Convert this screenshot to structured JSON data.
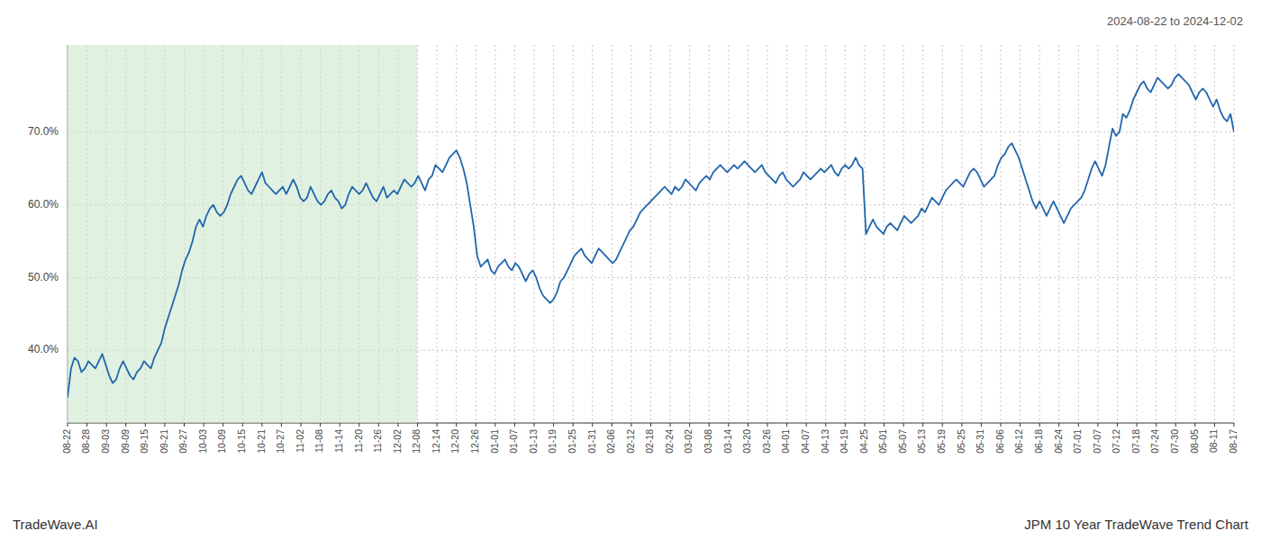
{
  "chart_data": {
    "type": "line",
    "title": "JPM 10 Year TradeWave Trend Chart",
    "subtitle": "2024-08-22 to 2024-12-02",
    "annotations": [
      "TradeWave.AI"
    ],
    "color": "#2166ac",
    "grid": true,
    "xlim": [
      0,
      60
    ],
    "xticks": [
      {
        "value": 0,
        "label": "08-22"
      },
      {
        "value": 1,
        "label": "08-28"
      },
      {
        "value": 2,
        "label": "09-03"
      },
      {
        "value": 3,
        "label": "09-09"
      },
      {
        "value": 4,
        "label": "09-15"
      },
      {
        "value": 5,
        "label": "09-21"
      },
      {
        "value": 6,
        "label": "09-27"
      },
      {
        "value": 7,
        "label": "10-03"
      },
      {
        "value": 8,
        "label": "10-09"
      },
      {
        "value": 9,
        "label": "10-15"
      },
      {
        "value": 10,
        "label": "10-21"
      },
      {
        "value": 11,
        "label": "10-27"
      },
      {
        "value": 12,
        "label": "11-02"
      },
      {
        "value": 13,
        "label": "11-08"
      },
      {
        "value": 14,
        "label": "11-14"
      },
      {
        "value": 15,
        "label": "11-20"
      },
      {
        "value": 16,
        "label": "11-26"
      },
      {
        "value": 17,
        "label": "12-02"
      },
      {
        "value": 18,
        "label": "12-08"
      },
      {
        "value": 19,
        "label": "12-14"
      },
      {
        "value": 20,
        "label": "12-20"
      },
      {
        "value": 21,
        "label": "12-26"
      },
      {
        "value": 22,
        "label": "01-01"
      },
      {
        "value": 23,
        "label": "01-07"
      },
      {
        "value": 24,
        "label": "01-13"
      },
      {
        "value": 25,
        "label": "01-19"
      },
      {
        "value": 26,
        "label": "01-25"
      },
      {
        "value": 27,
        "label": "01-31"
      },
      {
        "value": 28,
        "label": "02-06"
      },
      {
        "value": 29,
        "label": "02-12"
      },
      {
        "value": 30,
        "label": "02-18"
      },
      {
        "value": 31,
        "label": "02-24"
      },
      {
        "value": 32,
        "label": "03-02"
      },
      {
        "value": 33,
        "label": "03-08"
      },
      {
        "value": 34,
        "label": "03-14"
      },
      {
        "value": 35,
        "label": "03-20"
      },
      {
        "value": 36,
        "label": "03-26"
      },
      {
        "value": 37,
        "label": "04-01"
      },
      {
        "value": 38,
        "label": "04-07"
      },
      {
        "value": 39,
        "label": "04-13"
      },
      {
        "value": 40,
        "label": "04-19"
      },
      {
        "value": 41,
        "label": "04-25"
      },
      {
        "value": 42,
        "label": "05-01"
      },
      {
        "value": 43,
        "label": "05-07"
      },
      {
        "value": 44,
        "label": "05-13"
      },
      {
        "value": 45,
        "label": "05-19"
      },
      {
        "value": 46,
        "label": "05-25"
      },
      {
        "value": 47,
        "label": "05-31"
      },
      {
        "value": 48,
        "label": "06-06"
      },
      {
        "value": 49,
        "label": "06-12"
      },
      {
        "value": 50,
        "label": "06-18"
      },
      {
        "value": 51,
        "label": "06-24"
      },
      {
        "value": 52,
        "label": "07-01"
      },
      {
        "value": 53,
        "label": "07-07"
      },
      {
        "value": 54,
        "label": "07-12"
      },
      {
        "value": 55,
        "label": "07-18"
      },
      {
        "value": 56,
        "label": "07-24"
      },
      {
        "value": 57,
        "label": "07-30"
      },
      {
        "value": 58,
        "label": "08-05"
      },
      {
        "value": 59,
        "label": "08-11"
      },
      {
        "value": 60,
        "label": "08-17"
      }
    ],
    "ylim": [
      30,
      82
    ],
    "yticks": [
      {
        "value": 40,
        "label": "40.0%"
      },
      {
        "value": 50,
        "label": "50.0%"
      },
      {
        "value": 60,
        "label": "60.0%"
      },
      {
        "value": 70,
        "label": "70.0%"
      }
    ],
    "shaded_span": {
      "from": 0,
      "to": 18,
      "color": "#c8e6c8"
    },
    "values": [
      33.5,
      37.5,
      39.0,
      38.5,
      37.0,
      37.5,
      38.5,
      38.0,
      37.5,
      38.5,
      39.5,
      38.0,
      36.5,
      35.5,
      36.0,
      37.5,
      38.5,
      37.5,
      36.5,
      36.0,
      37.0,
      37.5,
      38.5,
      38.0,
      37.5,
      39.0,
      40.0,
      41.0,
      43.0,
      44.5,
      46.0,
      47.5,
      49.0,
      51.0,
      52.5,
      53.5,
      55.0,
      57.0,
      58.0,
      57.0,
      58.5,
      59.5,
      60.0,
      59.0,
      58.5,
      59.0,
      60.0,
      61.5,
      62.5,
      63.5,
      64.0,
      63.0,
      62.0,
      61.5,
      62.5,
      63.5,
      64.5,
      63.0,
      62.5,
      62.0,
      61.5,
      62.0,
      62.5,
      61.5,
      62.5,
      63.5,
      62.5,
      61.0,
      60.5,
      61.0,
      62.5,
      61.5,
      60.5,
      60.0,
      60.5,
      61.5,
      62.0,
      61.0,
      60.5,
      59.5,
      60.0,
      61.5,
      62.5,
      62.0,
      61.5,
      62.0,
      63.0,
      62.0,
      61.0,
      60.5,
      61.5,
      62.5,
      61.0,
      61.5,
      62.0,
      61.5,
      62.5,
      63.5,
      63.0,
      62.5,
      63.0,
      64.0,
      63.0,
      62.0,
      63.5,
      64.0,
      65.5,
      65.0,
      64.5,
      65.5,
      66.5,
      67.0,
      67.5,
      66.5,
      65.0,
      63.0,
      60.0,
      57.0,
      53.0,
      51.5,
      52.0,
      52.5,
      51.0,
      50.5,
      51.5,
      52.0,
      52.5,
      51.5,
      51.0,
      52.0,
      51.5,
      50.5,
      49.5,
      50.5,
      51.0,
      50.0,
      48.5,
      47.5,
      47.0,
      46.5,
      47.0,
      48.0,
      49.5,
      50.0,
      51.0,
      52.0,
      53.0,
      53.5,
      54.0,
      53.0,
      52.5,
      52.0,
      53.0,
      54.0,
      53.5,
      53.0,
      52.5,
      52.0,
      52.5,
      53.5,
      54.5,
      55.5,
      56.5,
      57.0,
      58.0,
      59.0,
      59.5,
      60.0,
      60.5,
      61.0,
      61.5,
      62.0,
      62.5,
      62.0,
      61.5,
      62.5,
      62.0,
      62.5,
      63.5,
      63.0,
      62.5,
      62.0,
      63.0,
      63.5,
      64.0,
      63.5,
      64.5,
      65.0,
      65.5,
      65.0,
      64.5,
      65.0,
      65.5,
      65.0,
      65.5,
      66.0,
      65.5,
      65.0,
      64.5,
      65.0,
      65.5,
      64.5,
      64.0,
      63.5,
      63.0,
      64.0,
      64.5,
      63.5,
      63.0,
      62.5,
      63.0,
      63.5,
      64.5,
      64.0,
      63.5,
      64.0,
      64.5,
      65.0,
      64.5,
      65.0,
      65.5,
      64.5,
      64.0,
      65.0,
      65.5,
      65.0,
      65.5,
      66.5,
      65.5,
      65.0,
      56.0,
      57.0,
      58.0,
      57.0,
      56.5,
      56.0,
      57.0,
      57.5,
      57.0,
      56.5,
      57.5,
      58.5,
      58.0,
      57.5,
      58.0,
      58.5,
      59.5,
      59.0,
      60.0,
      61.0,
      60.5,
      60.0,
      61.0,
      62.0,
      62.5,
      63.0,
      63.5,
      63.0,
      62.5,
      63.5,
      64.5,
      65.0,
      64.5,
      63.5,
      62.5,
      63.0,
      63.5,
      64.0,
      65.5,
      66.5,
      67.0,
      68.0,
      68.5,
      67.5,
      66.5,
      65.0,
      63.5,
      62.0,
      60.5,
      59.5,
      60.5,
      59.5,
      58.5,
      59.5,
      60.5,
      59.5,
      58.5,
      57.5,
      58.5,
      59.5,
      60.0,
      60.5,
      61.0,
      62.0,
      63.5,
      65.0,
      66.0,
      65.0,
      64.0,
      65.5,
      68.0,
      70.5,
      69.5,
      70.0,
      72.5,
      72.0,
      73.0,
      74.5,
      75.5,
      76.5,
      77.0,
      76.0,
      75.5,
      76.5,
      77.5,
      77.0,
      76.5,
      76.0,
      76.5,
      77.5,
      78.0,
      77.5,
      77.0,
      76.5,
      75.5,
      74.5,
      75.5,
      76.0,
      75.5,
      74.5,
      73.5,
      74.5,
      73.0,
      72.0,
      71.5,
      72.5,
      70.0
    ]
  }
}
